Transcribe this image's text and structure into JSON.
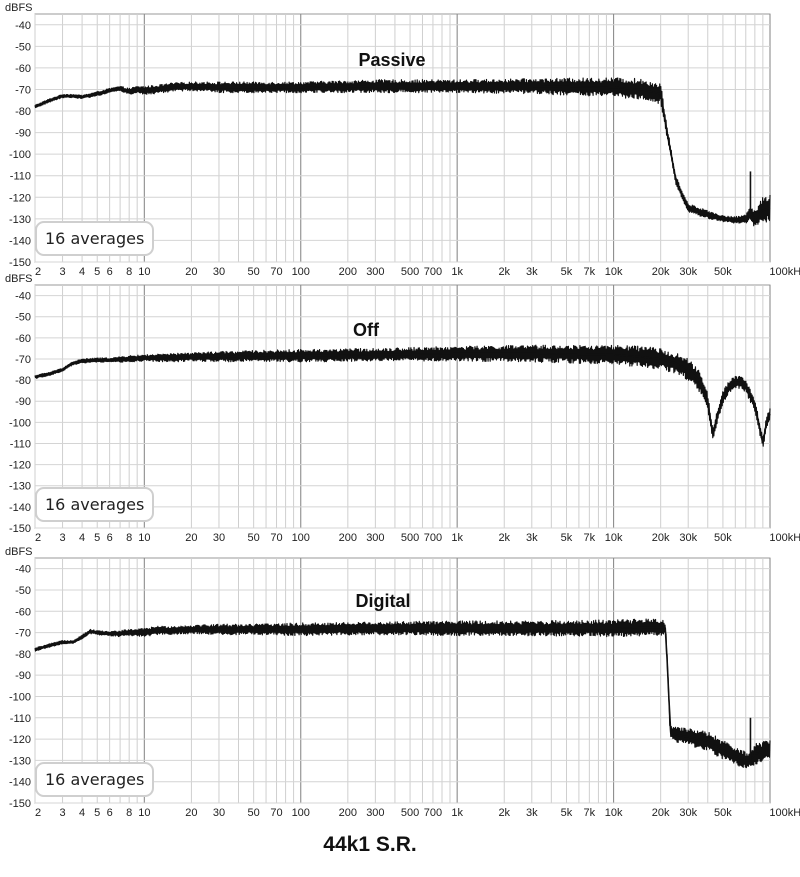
{
  "caption": "44k1 S.R.",
  "chart_data": [
    {
      "type": "line",
      "title": "Passive",
      "ylabel": "dBFS",
      "badge": "16 averages",
      "xscale": "log",
      "xlim": [
        2,
        100000
      ],
      "ylim": [
        -150,
        -35
      ],
      "grid": true,
      "y_ticks": [
        -40,
        -50,
        -60,
        -70,
        -80,
        -90,
        -100,
        -110,
        -120,
        -130,
        -140,
        -150
      ],
      "x_tick_labels": [
        {
          "x": 2,
          "label": "2"
        },
        {
          "x": 3,
          "label": "3"
        },
        {
          "x": 4,
          "label": "4"
        },
        {
          "x": 5,
          "label": "5"
        },
        {
          "x": 6,
          "label": "6"
        },
        {
          "x": 8,
          "label": "8"
        },
        {
          "x": 10,
          "label": "10"
        },
        {
          "x": 20,
          "label": "20"
        },
        {
          "x": 30,
          "label": "30"
        },
        {
          "x": 50,
          "label": "50"
        },
        {
          "x": 70,
          "label": "70"
        },
        {
          "x": 100,
          "label": "100"
        },
        {
          "x": 200,
          "label": "200"
        },
        {
          "x": 300,
          "label": "300"
        },
        {
          "x": 500,
          "label": "500"
        },
        {
          "x": 700,
          "label": "700"
        },
        {
          "x": 1000,
          "label": "1k"
        },
        {
          "x": 2000,
          "label": "2k"
        },
        {
          "x": 3000,
          "label": "3k"
        },
        {
          "x": 5000,
          "label": "5k"
        },
        {
          "x": 7000,
          "label": "7k"
        },
        {
          "x": 10000,
          "label": "10k"
        },
        {
          "x": 20000,
          "label": "20k"
        },
        {
          "x": 30000,
          "label": "30k"
        },
        {
          "x": 50000,
          "label": "50k"
        },
        {
          "x": 100000,
          "label": "100kHz"
        }
      ],
      "series": [
        {
          "x": [
            2,
            2.5,
            3,
            3.5,
            4,
            5,
            6,
            7,
            8,
            9,
            10,
            12,
            15,
            20,
            30,
            50,
            100,
            300,
            1000,
            3000,
            10000,
            15000,
            20000,
            22000,
            25000,
            30000,
            40000,
            50000,
            60000,
            70000,
            75000,
            80000,
            85000,
            90000,
            100000
          ],
          "y": [
            -78,
            -75,
            -73,
            -73,
            -73.5,
            -72,
            -70.5,
            -69.5,
            -71,
            -70,
            -70.5,
            -70,
            -69,
            -68.5,
            -69,
            -69,
            -69,
            -68.5,
            -68.5,
            -68.5,
            -69,
            -70,
            -72,
            -90,
            -112,
            -125,
            -128,
            -130,
            -130.5,
            -130,
            -127,
            -130,
            -128,
            -126,
            -125
          ],
          "band": [
            0.8,
            0.8,
            0.8,
            0.8,
            0.8,
            1,
            1,
            1,
            1.5,
            1.5,
            2,
            2,
            2,
            2,
            2.5,
            2.5,
            2.5,
            3,
            3,
            3.5,
            4.5,
            5,
            5,
            3,
            2,
            2,
            2,
            1.5,
            1.5,
            2,
            4,
            4,
            5,
            6,
            7
          ],
          "spikes": [
            {
              "x": 75000,
              "y": -108
            }
          ]
        }
      ]
    },
    {
      "type": "line",
      "title": "Off",
      "ylabel": "dBFS",
      "badge": "16 averages",
      "xscale": "log",
      "xlim": [
        2,
        100000
      ],
      "ylim": [
        -150,
        -35
      ],
      "grid": true,
      "y_ticks": [
        -40,
        -50,
        -60,
        -70,
        -80,
        -90,
        -100,
        -110,
        -120,
        -130,
        -140,
        -150
      ],
      "x_tick_labels": [
        {
          "x": 2,
          "label": "2"
        },
        {
          "x": 3,
          "label": "3"
        },
        {
          "x": 4,
          "label": "4"
        },
        {
          "x": 5,
          "label": "5"
        },
        {
          "x": 6,
          "label": "6"
        },
        {
          "x": 8,
          "label": "8"
        },
        {
          "x": 10,
          "label": "10"
        },
        {
          "x": 20,
          "label": "20"
        },
        {
          "x": 30,
          "label": "30"
        },
        {
          "x": 50,
          "label": "50"
        },
        {
          "x": 70,
          "label": "70"
        },
        {
          "x": 100,
          "label": "100"
        },
        {
          "x": 200,
          "label": "200"
        },
        {
          "x": 300,
          "label": "300"
        },
        {
          "x": 500,
          "label": "500"
        },
        {
          "x": 700,
          "label": "700"
        },
        {
          "x": 1000,
          "label": "1k"
        },
        {
          "x": 2000,
          "label": "2k"
        },
        {
          "x": 3000,
          "label": "3k"
        },
        {
          "x": 5000,
          "label": "5k"
        },
        {
          "x": 7000,
          "label": "7k"
        },
        {
          "x": 10000,
          "label": "10k"
        },
        {
          "x": 20000,
          "label": "20k"
        },
        {
          "x": 30000,
          "label": "30k"
        },
        {
          "x": 50000,
          "label": "50k"
        },
        {
          "x": 100000,
          "label": "100kHz"
        }
      ],
      "series": [
        {
          "x": [
            2,
            2.5,
            3,
            3.5,
            4,
            5,
            6,
            8,
            10,
            15,
            20,
            30,
            50,
            100,
            300,
            1000,
            3000,
            10000,
            15000,
            20000,
            25000,
            30000,
            35000,
            40000,
            43000,
            45000,
            50000,
            55000,
            60000,
            65000,
            70000,
            80000,
            85000,
            90000,
            95000,
            100000
          ],
          "y": [
            -78.5,
            -77,
            -75,
            -72,
            -71,
            -70.5,
            -70.5,
            -70,
            -69.5,
            -69.5,
            -69,
            -69,
            -68.5,
            -68.5,
            -68,
            -67.5,
            -67.5,
            -68,
            -69,
            -70,
            -72,
            -75,
            -80,
            -90,
            -106,
            -100,
            -88,
            -83,
            -81,
            -81,
            -83,
            -92,
            -101,
            -110,
            -100,
            -96
          ],
          "band": [
            0.8,
            0.8,
            0.8,
            0.8,
            1,
            1,
            1,
            1.5,
            1.5,
            2,
            2,
            2.5,
            2.5,
            3,
            3,
            3.5,
            4,
            4.5,
            5,
            5,
            5,
            5,
            5,
            4,
            3,
            3,
            3,
            3,
            3,
            3,
            3,
            3,
            3,
            3,
            3,
            3
          ]
        }
      ]
    },
    {
      "type": "line",
      "title": "Digital",
      "ylabel": "dBFS",
      "badge": "16 averages",
      "xscale": "log",
      "xlim": [
        2,
        100000
      ],
      "ylim": [
        -150,
        -35
      ],
      "grid": true,
      "y_ticks": [
        -40,
        -50,
        -60,
        -70,
        -80,
        -90,
        -100,
        -110,
        -120,
        -130,
        -140,
        -150
      ],
      "x_tick_labels": [
        {
          "x": 2,
          "label": "2"
        },
        {
          "x": 3,
          "label": "3"
        },
        {
          "x": 4,
          "label": "4"
        },
        {
          "x": 5,
          "label": "5"
        },
        {
          "x": 6,
          "label": "6"
        },
        {
          "x": 8,
          "label": "8"
        },
        {
          "x": 10,
          "label": "10"
        },
        {
          "x": 20,
          "label": "20"
        },
        {
          "x": 30,
          "label": "30"
        },
        {
          "x": 50,
          "label": "50"
        },
        {
          "x": 70,
          "label": "70"
        },
        {
          "x": 100,
          "label": "100"
        },
        {
          "x": 200,
          "label": "200"
        },
        {
          "x": 300,
          "label": "300"
        },
        {
          "x": 500,
          "label": "500"
        },
        {
          "x": 700,
          "label": "700"
        },
        {
          "x": 1000,
          "label": "1k"
        },
        {
          "x": 2000,
          "label": "2k"
        },
        {
          "x": 3000,
          "label": "3k"
        },
        {
          "x": 5000,
          "label": "5k"
        },
        {
          "x": 7000,
          "label": "7k"
        },
        {
          "x": 10000,
          "label": "10k"
        },
        {
          "x": 20000,
          "label": "20k"
        },
        {
          "x": 30000,
          "label": "30k"
        },
        {
          "x": 50000,
          "label": "50k"
        },
        {
          "x": 100000,
          "label": "100kHz"
        }
      ],
      "series": [
        {
          "x": [
            2,
            2.5,
            3,
            3.5,
            4,
            4.5,
            5,
            6,
            7,
            8,
            10,
            12,
            15,
            20,
            30,
            50,
            100,
            300,
            1000,
            3000,
            10000,
            20000,
            21500,
            22500,
            23000,
            25000,
            30000,
            40000,
            50000,
            60000,
            70000,
            75000,
            80000,
            90000,
            100000
          ],
          "y": [
            -78,
            -76,
            -74.5,
            -74.5,
            -72,
            -69.5,
            -70,
            -70.5,
            -70.5,
            -70,
            -70,
            -69,
            -69,
            -68.5,
            -68.5,
            -68.5,
            -68.5,
            -68,
            -68,
            -68,
            -68,
            -67.5,
            -68,
            -98,
            -117,
            -118,
            -119,
            -121,
            -125,
            -128,
            -130,
            -130,
            -127,
            -126,
            -125
          ],
          "band": [
            0.8,
            0.8,
            0.8,
            0.8,
            1,
            1,
            1,
            1,
            1.5,
            1.5,
            2,
            2,
            2,
            2,
            2.5,
            2.5,
            3,
            3,
            3.5,
            3.5,
            4,
            4,
            3,
            2,
            3,
            3.5,
            4,
            4.5,
            4.5,
            4,
            4,
            4,
            5,
            5,
            5
          ],
          "spikes": [
            {
              "x": 75000,
              "y": -110
            }
          ]
        }
      ]
    }
  ]
}
